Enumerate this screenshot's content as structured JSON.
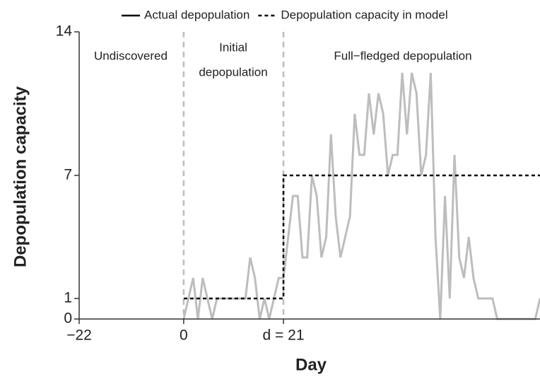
{
  "chart_data": {
    "type": "line",
    "xlabel": "Day",
    "ylabel": "Depopulation capacity",
    "xlim": [
      -22,
      75
    ],
    "ylim": [
      0,
      14
    ],
    "xticks": [
      -22,
      0,
      {
        "value": 21,
        "label": "d = 21"
      }
    ],
    "yticks": [
      0,
      1,
      7,
      14
    ],
    "vlines": [
      0,
      21
    ],
    "annotations": [
      [
        "Undiscovered"
      ],
      [
        "Initial",
        "depopulation"
      ],
      [
        "Full−fledged depopulation"
      ]
    ],
    "series": [
      {
        "name": "Actual depopulation",
        "color": "#bdbdbd",
        "legend_color": "#000000",
        "style": "solid",
        "x": [
          0,
          1,
          2,
          3,
          4,
          5,
          6,
          7,
          8,
          9,
          10,
          11,
          12,
          13,
          14,
          15,
          16,
          17,
          18,
          19,
          20,
          21,
          22,
          23,
          24,
          25,
          26,
          27,
          28,
          29,
          30,
          31,
          32,
          33,
          34,
          35,
          36,
          37,
          38,
          39,
          40,
          41,
          42,
          43,
          44,
          45,
          46,
          47,
          48,
          49,
          50,
          51,
          52,
          53,
          54,
          55,
          56,
          57,
          58,
          59,
          60,
          61,
          62,
          63,
          64,
          65,
          66,
          67,
          68,
          69,
          70,
          71,
          72,
          73,
          74,
          75
        ],
        "values": [
          0,
          1,
          2,
          0,
          2,
          1,
          0,
          1,
          1,
          1,
          1,
          1,
          1,
          1,
          3,
          2,
          0,
          1,
          0,
          1,
          2,
          2,
          4,
          6,
          6,
          3,
          3,
          7,
          6,
          3,
          4,
          9,
          5,
          3,
          4,
          5,
          10,
          8,
          8,
          11,
          9,
          11,
          10,
          7,
          8,
          8,
          12,
          9,
          12,
          11,
          7,
          8,
          12,
          4,
          0,
          6,
          1,
          8,
          3,
          2,
          4,
          2,
          1,
          1,
          1,
          1,
          0,
          0,
          0,
          0,
          0,
          0,
          0,
          0,
          0,
          1
        ]
      },
      {
        "name": "Depopulation capacity in model",
        "color": "#000000",
        "legend_color": "#000000",
        "style": "dashed",
        "x": [
          0,
          21,
          21,
          75
        ],
        "values": [
          1,
          1,
          7,
          7
        ]
      }
    ]
  }
}
